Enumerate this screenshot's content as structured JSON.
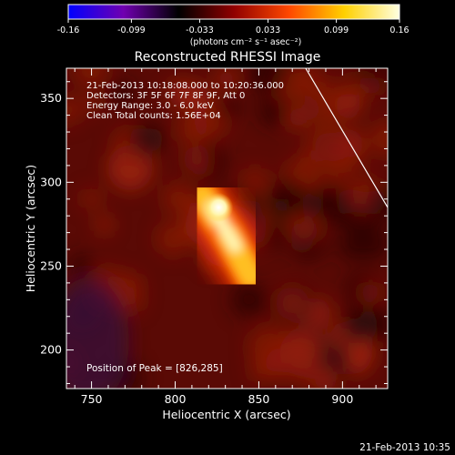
{
  "chart_data": {
    "type": "heatmap",
    "title": "Reconstructed RHESSI Image",
    "xlabel": "Heliocentric X (arcsec)",
    "ylabel": "Heliocentric Y (arcsec)",
    "xlim": [
      735,
      927
    ],
    "ylim": [
      177,
      368
    ],
    "xticks": [
      750,
      800,
      850,
      900
    ],
    "yticks": [
      200,
      250,
      300,
      350
    ],
    "colorbar": {
      "range": [
        -0.16,
        0.16
      ],
      "ticks": [
        "-0.16",
        "-0.099",
        "-0.033",
        "0.033",
        "0.099",
        "0.16"
      ],
      "tick_values": [
        -0.16,
        -0.099,
        -0.033,
        0.033,
        0.099,
        0.16
      ],
      "units": "(photons cm⁻² s⁻¹ asec⁻²)",
      "colormap": [
        "#0000ff",
        "#7000b0",
        "#000000",
        "#900000",
        "#ff4800",
        "#ffd000",
        "#ffffe0"
      ]
    },
    "annotations": [
      "21-Feb-2013 10:18:08.000 to 10:20:36.000",
      "Detectors: 3F 5F 6F 7F 8F 9F, Att 0",
      "Energy Range: 3.0 - 6.0 keV",
      "Clean     Total counts: 1.56E+04"
    ],
    "peak_label": "Position of Peak = [826,285]",
    "peak": {
      "x": 826,
      "y": 285,
      "value": 0.16
    },
    "source": {
      "ridge": [
        [
          816,
          292
        ],
        [
          832,
          268
        ],
        [
          845,
          244
        ]
      ],
      "core": [
        [
          822,
          285
        ],
        [
          836,
          262
        ]
      ]
    },
    "limb": [
      [
        878,
        368
      ],
      [
        927,
        285
      ]
    ],
    "footer_date": "21-Feb-2013 10:35"
  }
}
